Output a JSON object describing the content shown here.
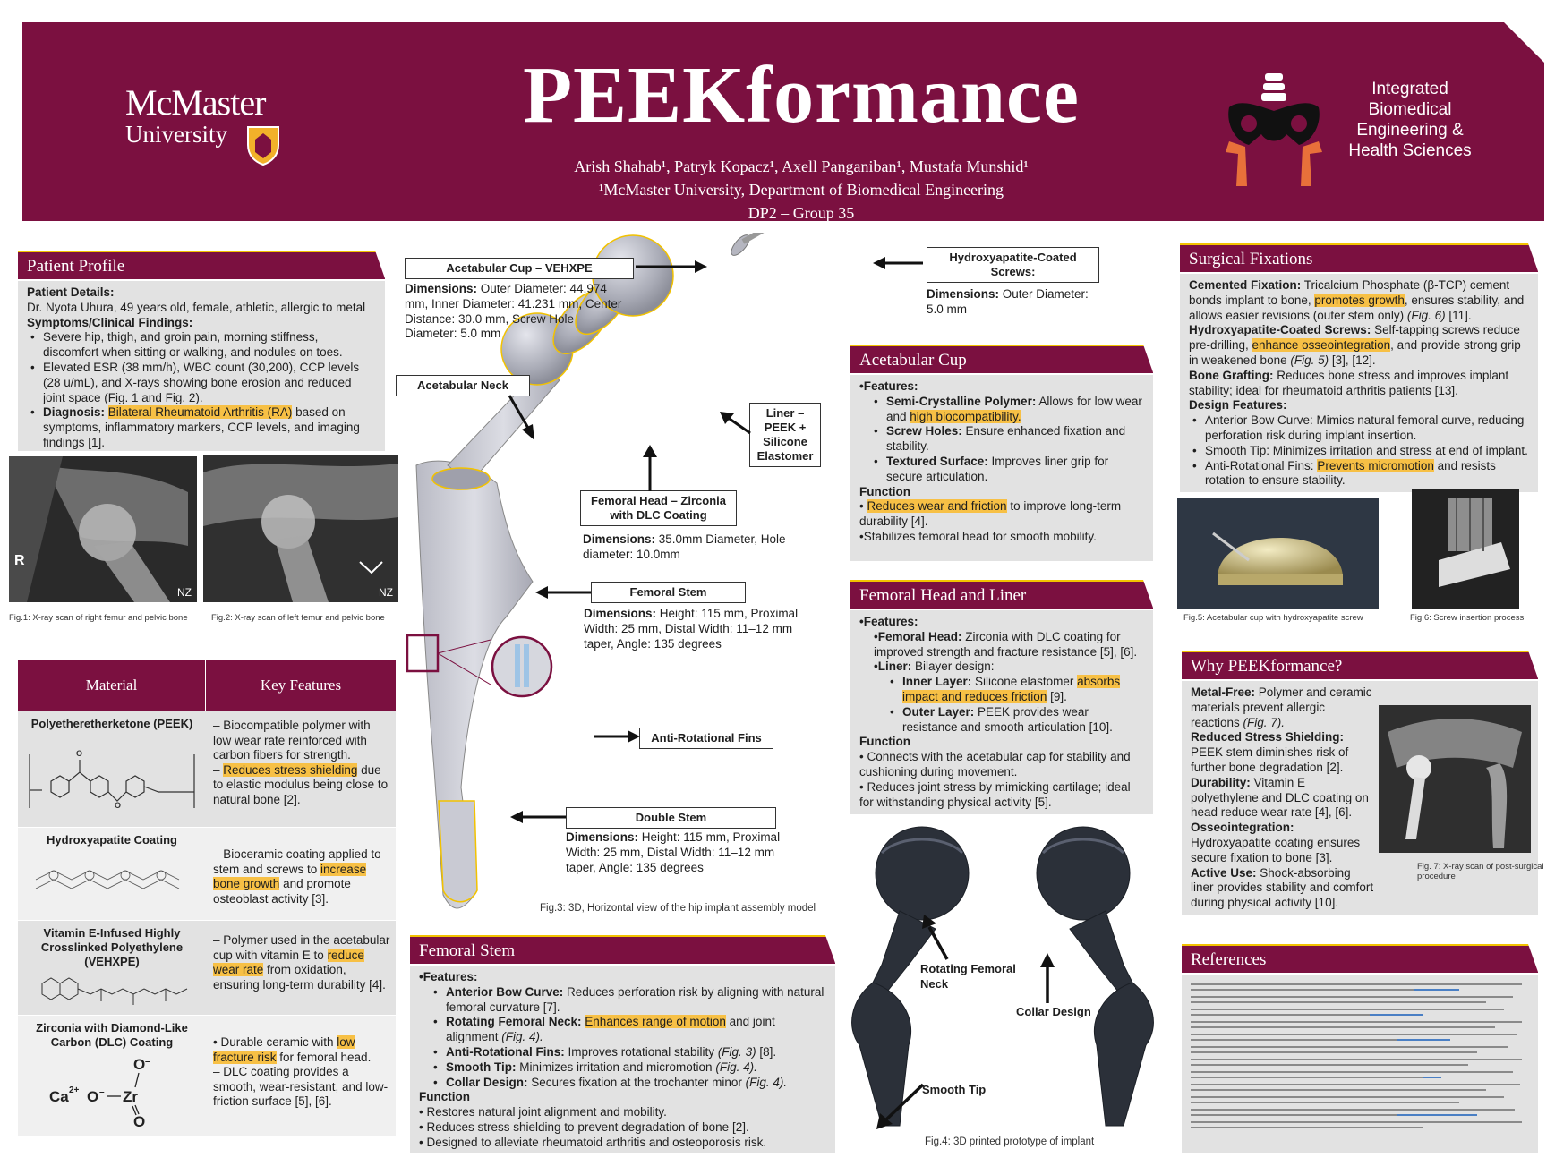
{
  "header": {
    "title": "PEEKformance",
    "authors": "Arish Shahab¹, Patryk Kopacz¹, Axell Panganiban¹, Mustafa Munshid¹",
    "affiliation": "¹McMaster University, Department of Biomedical Engineering",
    "group": "DP2 – Group 35",
    "left_logo_line1": "McMaster",
    "left_logo_line2": "University",
    "right_logo_text_1": "Integrated",
    "right_logo_text_2": "Biomedical",
    "right_logo_text_3": "Engineering &",
    "right_logo_text_4": "Health Sciences"
  },
  "patient": {
    "heading": "Patient Profile",
    "details_label": "Patient Details:",
    "details_text": "Dr. Nyota Uhura, 49 years old, female, athletic, allergic to metal",
    "symptoms_label": "Symptoms/Clinical Findings:",
    "bullet1": "Severe hip, thigh, and groin pain, morning stiffness, discomfort when sitting or walking, and nodules on toes.",
    "bullet2": "Elevated ESR (38 mm/h), WBC count (30,200), CCP levels (28 u/mL), and X-rays showing bone erosion and reduced joint space (Fig. 1 and Fig. 2).",
    "diagnosis_label": "Diagnosis:",
    "diagnosis_hl": "Bilateral Rheumatoid Arthritis (RA)",
    "diagnosis_rest": " based on symptoms, inflammatory markers, CCP levels, and imaging findings [1].",
    "fig1_caption": "Fig.1: X-ray scan of right femur and pelvic bone",
    "fig2_caption": "Fig.2: X-ray scan of left femur and pelvic bone",
    "xray_mark_r": "R",
    "xray_mark_nz": "NZ"
  },
  "materials": {
    "col1": "Material",
    "col2": "Key Features",
    "rows": [
      {
        "name": "Polyetheretherketone (PEEK)",
        "f1": "– Biocompatible polymer with low wear rate reinforced with carbon fibers for strength.",
        "f2_hl": "Reduces stress shielding",
        "f2_rest": " due to elastic modulus being close to natural bone [2]."
      },
      {
        "name": "Hydroxyapatite Coating",
        "f1_pre": "– Bioceramic coating applied to stem and screws to ",
        "f1_hl": "increase bone growth",
        "f1_rest": " and promote osteoblast activity [3]."
      },
      {
        "name": "Vitamin E-Infused Highly Crosslinked Polyethylene (VEHXPE)",
        "f1_pre": "– Polymer used in the acetabular cup with vitamin E to ",
        "f1_hl": "reduce wear rate",
        "f1_rest": " from oxidation, ensuring long-term durability [4]."
      },
      {
        "name": "Zirconia with Diamond-Like Carbon (DLC) Coating",
        "f1_pre": "• Durable ceramic with ",
        "f1_hl": "low fracture risk",
        "f1_rest": " for femoral head.",
        "f2": "– DLC coating provides a smooth, wear-resistant, and low-friction surface [5], [6]."
      }
    ]
  },
  "diagram": {
    "cup_label": "Acetabular Cup – VEHXPE",
    "cup_dim_label": "Dimensions:",
    "cup_dim": " Outer Diameter: 44.974 mm, Inner Diameter: 41.231 mm, Center Distance: 30.0 mm, Screw Hole Diameter: 5.0 mm",
    "screws_label": "Hydroxyapatite-Coated Screws:",
    "screws_dim_label": "Dimensions:",
    "screws_dim": " Outer Diameter: 5.0 mm",
    "neck_label": "Acetabular Neck",
    "liner_label": "Liner – PEEK + Silicone Elastomer",
    "head_label": "Femoral Head – Zirconia with DLC Coating",
    "head_dim_label": "Dimensions:",
    "head_dim": " 35.0mm Diameter, Hole diameter: 10.0mm",
    "stem_label": "Femoral Stem",
    "stem_dim_label": "Dimensions:",
    "stem_dim": " Height: 115 mm, Proximal Width: 25 mm, Distal Width: 11–12 mm taper, Angle: 135 degrees",
    "fins_label": "Anti-Rotational Fins",
    "double_label": "Double Stem",
    "double_dim_label": "Dimensions:",
    "double_dim": " Height: 115 mm, Proximal Width: 25 mm, Distal Width: 11–12 mm taper, Angle: 135 degrees",
    "fig3_caption": "Fig.3: 3D, Horizontal view of the hip implant assembly model"
  },
  "acetabular": {
    "heading": "Acetabular Cup",
    "features": "•Features:",
    "b1_label": "Semi-Crystalline Polymer:",
    "b1_pre": " Allows for low wear and ",
    "b1_hl": "high biocompatibility.",
    "b2_label": "Screw Holes:",
    "b2": " Ensure enhanced fixation and stability.",
    "b3_label": "Textured Surface:",
    "b3": " Improves liner grip for secure articulation.",
    "function": "Function",
    "f1_hl": "Reduces wear and friction",
    "f1_rest": " to improve long-term durability [4].",
    "f2": "•Stabilizes femoral head for smooth mobility."
  },
  "head_liner": {
    "heading": "Femoral Head and Liner",
    "features": "•Features:",
    "b1_label": "•Femoral Head:",
    "b1": " Zirconia with DLC coating for improved strength and fracture resistance [5], [6].",
    "b2_label": "•Liner:",
    "b2": " Bilayer design:",
    "s1_label": "Inner Layer:",
    "s1_pre": " Silicone elastomer ",
    "s1_hl": "absorbs impact and reduces friction",
    "s1_rest": " [9].",
    "s2_label": "Outer Layer:",
    "s2": " PEEK provides wear resistance and smooth articulation [10].",
    "function": "Function",
    "f1": "• Connects with the acetabular cap for stability and cushioning during movement.",
    "f2": "• Reduces joint stress by mimicking cartilage; ideal for withstanding physical activity [5]."
  },
  "femoral_stem": {
    "heading": "Femoral Stem",
    "features": "•Features:",
    "b1_label": "Anterior Bow Curve:",
    "b1": " Reduces perforation risk by aligning with natural femoral curvature [7].",
    "b2_label": "Rotating Femoral Neck:",
    "b2_hl": "Enhances range of motion",
    "b2_rest": " and joint alignment ",
    "b2_fig": "(Fig. 4).",
    "b3_label": "Anti-Rotational Fins:",
    "b3": " Improves rotational stability ",
    "b3_fig": "(Fig. 3)",
    "b3_rest": " [8].",
    "b4_label": "Smooth Tip:",
    "b4": " Minimizes irritation and micromotion ",
    "b4_fig": "(Fig. 4).",
    "b5_label": "Collar Design:",
    "b5": " Secures fixation at the trochanter minor ",
    "b5_fig": "(Fig. 4).",
    "function": "Function",
    "f1": "• Restores natural joint alignment and mobility.",
    "f2": "• Reduces stress shielding to prevent degradation of bone [2].",
    "f3": "• Designed to alleviate rheumatoid arthritis and osteoporosis risk."
  },
  "prototype": {
    "neck_label": "Rotating Femoral Neck",
    "collar_label": "Collar Design",
    "tip_label": "Smooth Tip",
    "fig4_caption": "Fig.4: 3D printed prototype of implant"
  },
  "surgical": {
    "heading": "Surgical Fixations",
    "p1_label": "Cemented Fixation:",
    "p1_pre": " Tricalcium Phosphate (β-TCP) cement bonds implant to bone, ",
    "p1_hl": "promotes growth",
    "p1_rest": ", ensures stability, and allows easier revisions (outer stem only) ",
    "p1_fig": "(Fig. 6)",
    "p1_end": " [11].",
    "p2_label": "Hydroxyapatite-Coated Screws:",
    "p2_pre": " Self-tapping screws reduce pre-drilling, ",
    "p2_hl": "enhance osseointegration",
    "p2_rest": ", and provide strong grip in weakened bone ",
    "p2_fig": "(Fig. 5)",
    "p2_end": " [3], [12].",
    "p3_label": "Bone Grafting:",
    "p3": " Reduces bone stress and improves implant stability; ideal for rheumatoid arthritis patients [13].",
    "design_label": "Design Features:",
    "d1": "Anterior Bow Curve: Mimics natural femoral curve, reducing perforation risk during implant insertion.",
    "d2": "Smooth Tip: Minimizes irritation and stress at end of implant.",
    "d3_hl": "Prevents micromotion",
    "d3_pre": "Anti-Rotational Fins: ",
    "d3_rest": " and resists rotation to ensure stability.",
    "fig5_caption": "Fig.5: Acetabular cup with hydroxyapatite screw",
    "fig6_caption": "Fig.6: Screw insertion process"
  },
  "why": {
    "heading": "Why PEEKformance?",
    "p1_label": "Metal-Free:",
    "p1": " Polymer and ceramic materials prevent allergic reactions ",
    "p1_fig": "(Fig. 7).",
    "p2_label": "Reduced Stress Shielding:",
    "p2": " PEEK stem diminishes risk of further bone degradation [2].",
    "p3_label": "Durability:",
    "p3": " Vitamin E polyethylene and DLC coating on head reduce wear rate [4], [6].",
    "p4_label": "Osseointegration:",
    "p4": " Hydroxyapatite coating ensures secure fixation to bone [3].",
    "p5_label": "Active Use:",
    "p5": " Shock-absorbing liner provides stability and comfort during physical activity [10].",
    "fig7_caption": "Fig. 7: X-ray scan of post-surgical procedure"
  },
  "references": {
    "heading": "References"
  },
  "colors": {
    "maroon": "#7b1040",
    "highlight": "#f7c045",
    "gold_border": "#f2c200",
    "panel_grey": "#e2e2e2"
  }
}
